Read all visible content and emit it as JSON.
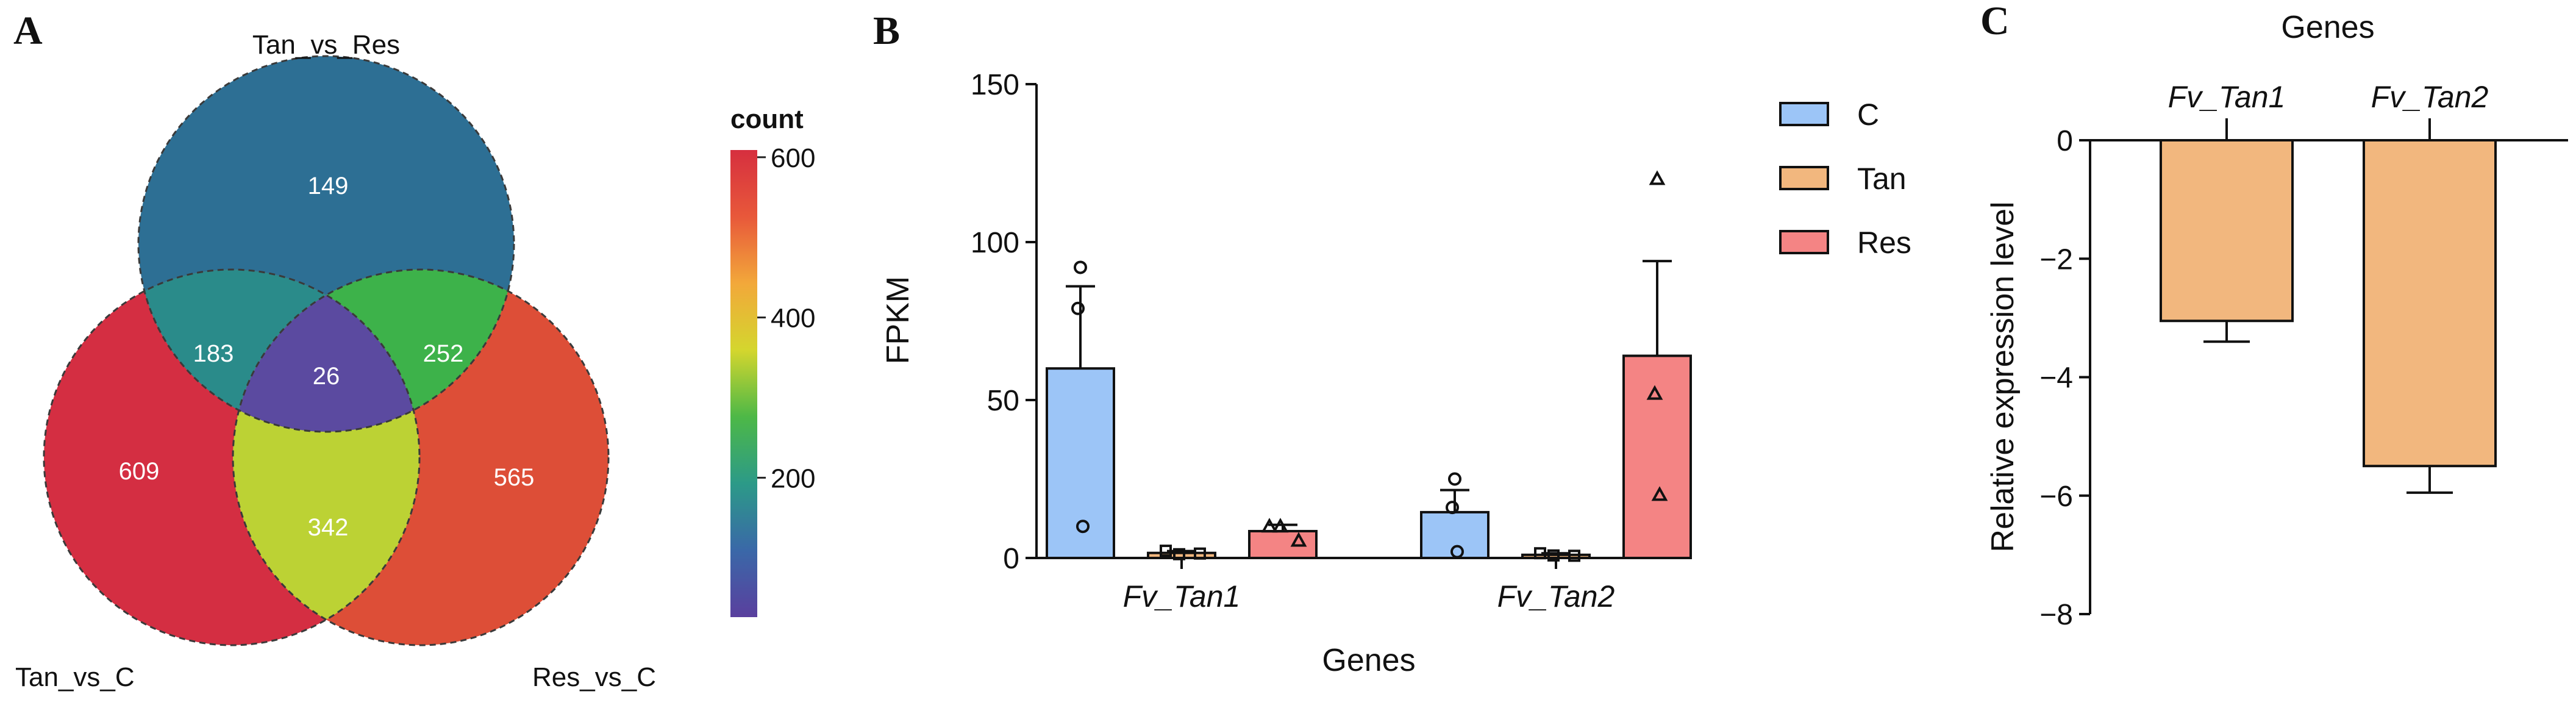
{
  "panels": {
    "a": "A",
    "b": "B",
    "c": "C"
  },
  "chart_data": [
    {
      "type": "venn",
      "panel": "A",
      "sets": [
        "Tan_vs_Res",
        "Tan_vs_C",
        "Res_vs_C"
      ],
      "regions": {
        "top_only": 149,
        "left_only": 609,
        "right_only": 565,
        "top_left": 183,
        "top_right": 252,
        "left_right": 342,
        "all_three": 26
      },
      "region_colors": {
        "top_only": "#2d6f94",
        "left_only": "#d42e42",
        "right_only": "#dd4e37",
        "top_left": "#2a8b8a",
        "top_right": "#3db24a",
        "left_right": "#bcd234",
        "all_three": "#5b4aa0"
      },
      "colorbar": {
        "title": "count",
        "ticks": [
          200,
          400,
          600
        ],
        "tick_labels": [
          "200",
          "400",
          "600"
        ],
        "range": [
          26,
          609
        ],
        "colors": [
          "#5a3f9e",
          "#3a68a8",
          "#2c9a88",
          "#4db847",
          "#d4d62e",
          "#f2a83a",
          "#e8583a",
          "#d62f3f"
        ]
      }
    },
    {
      "type": "bar",
      "panel": "B",
      "categories": [
        "Fv_Tan1",
        "Fv_Tan2"
      ],
      "xlabel": "Genes",
      "ylabel": "FPKM",
      "ylim": [
        0,
        150
      ],
      "yticks": [
        0,
        50,
        100,
        150
      ],
      "ytick_labels": [
        "0",
        "50",
        "100",
        "150"
      ],
      "series": [
        {
          "name": "C",
          "color": "#9cc5f7",
          "marker": "circle",
          "values": [
            60,
            14.5
          ],
          "errors": [
            26,
            7
          ],
          "points": [
            [
              92,
              79,
              10
            ],
            [
              25,
              16,
              2
            ]
          ]
        },
        {
          "name": "Tan",
          "color": "#f2b77e",
          "marker": "square",
          "values": [
            1.6,
            1.0
          ],
          "errors": [
            0.6,
            0.5
          ],
          "points": [
            [
              2.3,
              1.2,
              1.4
            ],
            [
              1.5,
              0.8,
              0.7
            ]
          ]
        },
        {
          "name": "Res",
          "color": "#f48484",
          "marker": "triangle",
          "values": [
            8.5,
            64
          ],
          "errors": [
            2,
            30
          ],
          "points": [
            [
              10,
              10,
              5.5
            ],
            [
              120,
              52,
              20
            ]
          ]
        }
      ],
      "legend": [
        "C",
        "Tan",
        "Res"
      ]
    },
    {
      "type": "bar",
      "panel": "C",
      "categories": [
        "Fv_Tan1",
        "Fv_Tan2"
      ],
      "xlabel": "Genes",
      "ylabel": "Relative expression level",
      "ylim": [
        -8,
        0
      ],
      "yticks": [
        0,
        -2,
        -4,
        -6,
        -8
      ],
      "ytick_labels": [
        "0",
        "−2",
        "−4",
        "−6",
        "−8"
      ],
      "color": "#f2b77e",
      "values": [
        -3.05,
        -5.5
      ],
      "errors": [
        0.35,
        0.45
      ]
    }
  ]
}
